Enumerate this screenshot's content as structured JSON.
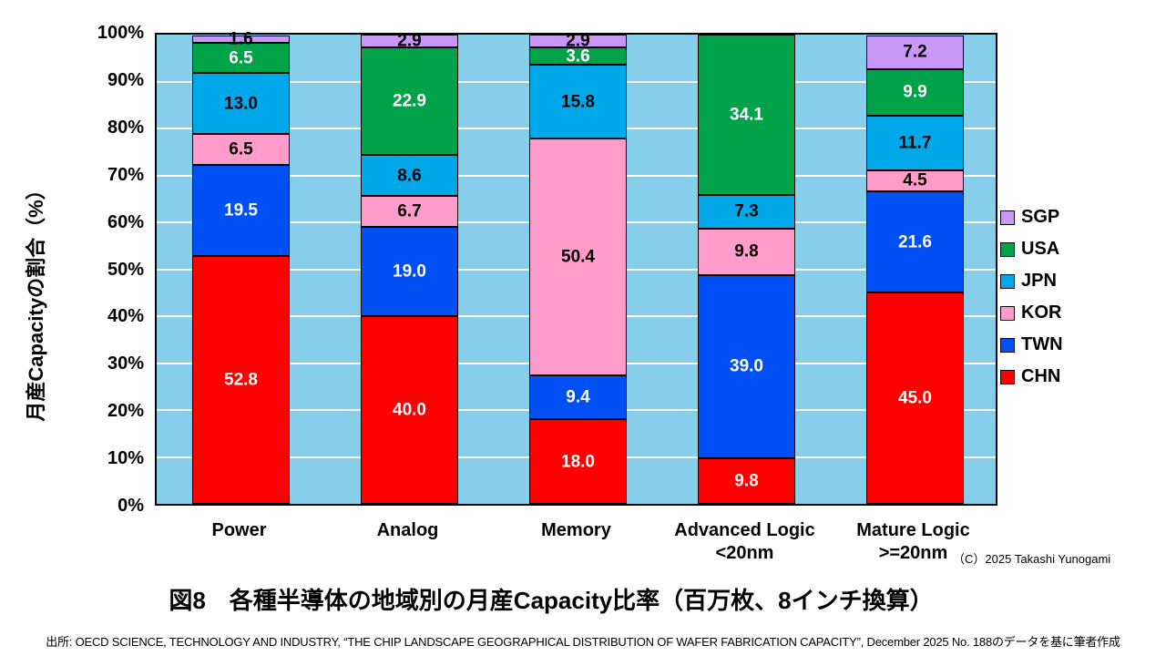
{
  "title": "図8　各種半導体の地域別の月産Capacity比率（百万枚、8インチ換算）",
  "copyright": "（C）2025 Takashi Yunogami",
  "source": "出所: OECD SCIENCE, TECHNOLOGY AND INDUSTRY, “THE CHIP LANDSCAPE GEOGRAPHICAL DISTRIBUTION OF WAFER FABRICATION CAPACITY”, December 2025 No. 188のデータを基に筆者作成",
  "chart_data": {
    "type": "bar",
    "variant": "100%-stacked-column",
    "title": "図8　各種半導体の地域別の月産Capacity比率（百万枚、8インチ換算）",
    "ylabel": "月産Capacityの割合（%）",
    "xlabel": "",
    "ylim": [
      0,
      100
    ],
    "grid": "horizontal-white-every-10pct",
    "plot_bg_color": "#87CEEB",
    "legend_position": "right",
    "y_ticks": [
      {
        "pct": 0,
        "label": "0%"
      },
      {
        "pct": 10,
        "label": "10%"
      },
      {
        "pct": 20,
        "label": "20%"
      },
      {
        "pct": 30,
        "label": "30%"
      },
      {
        "pct": 40,
        "label": "40%"
      },
      {
        "pct": 50,
        "label": "50%"
      },
      {
        "pct": 60,
        "label": "60%"
      },
      {
        "pct": 70,
        "label": "70%"
      },
      {
        "pct": 80,
        "label": "80%"
      },
      {
        "pct": 90,
        "label": "90%"
      },
      {
        "pct": 100,
        "label": "100%"
      }
    ],
    "categories": [
      {
        "lines": [
          "Power"
        ]
      },
      {
        "lines": [
          "Analog"
        ]
      },
      {
        "lines": [
          "Memory"
        ]
      },
      {
        "lines": [
          "Advanced Logic",
          "<20nm"
        ]
      },
      {
        "lines": [
          "Mature Logic",
          ">=20nm"
        ]
      }
    ],
    "stack_order_bottom_to_top": [
      "CHN",
      "TWN",
      "KOR",
      "JPN",
      "USA",
      "SGP"
    ],
    "series": [
      {
        "name": "CHN",
        "color": "#FF0000",
        "label_color": "#FFFFFF",
        "values": [
          52.8,
          40.0,
          18.0,
          9.8,
          45.0
        ]
      },
      {
        "name": "TWN",
        "color": "#0050F5",
        "label_color": "#FFFFFF",
        "values": [
          19.5,
          19.0,
          9.4,
          39.0,
          21.6
        ]
      },
      {
        "name": "KOR",
        "color": "#FF9CCB",
        "label_color": "#000000",
        "values": [
          6.5,
          6.7,
          50.4,
          9.8,
          4.5
        ]
      },
      {
        "name": "JPN",
        "color": "#00A7E9",
        "label_color": "#000000",
        "values": [
          13.0,
          8.6,
          15.8,
          7.3,
          11.7
        ]
      },
      {
        "name": "USA",
        "color": "#00A348",
        "label_color": "#FFFFFF",
        "values": [
          6.5,
          22.9,
          3.6,
          34.1,
          9.9
        ]
      },
      {
        "name": "SGP",
        "color": "#CA96F8",
        "label_color": "#000000",
        "values": [
          1.6,
          2.9,
          2.9,
          0,
          7.2
        ]
      }
    ],
    "legend_order": [
      "SGP",
      "USA",
      "JPN",
      "KOR",
      "TWN",
      "CHN"
    ]
  }
}
